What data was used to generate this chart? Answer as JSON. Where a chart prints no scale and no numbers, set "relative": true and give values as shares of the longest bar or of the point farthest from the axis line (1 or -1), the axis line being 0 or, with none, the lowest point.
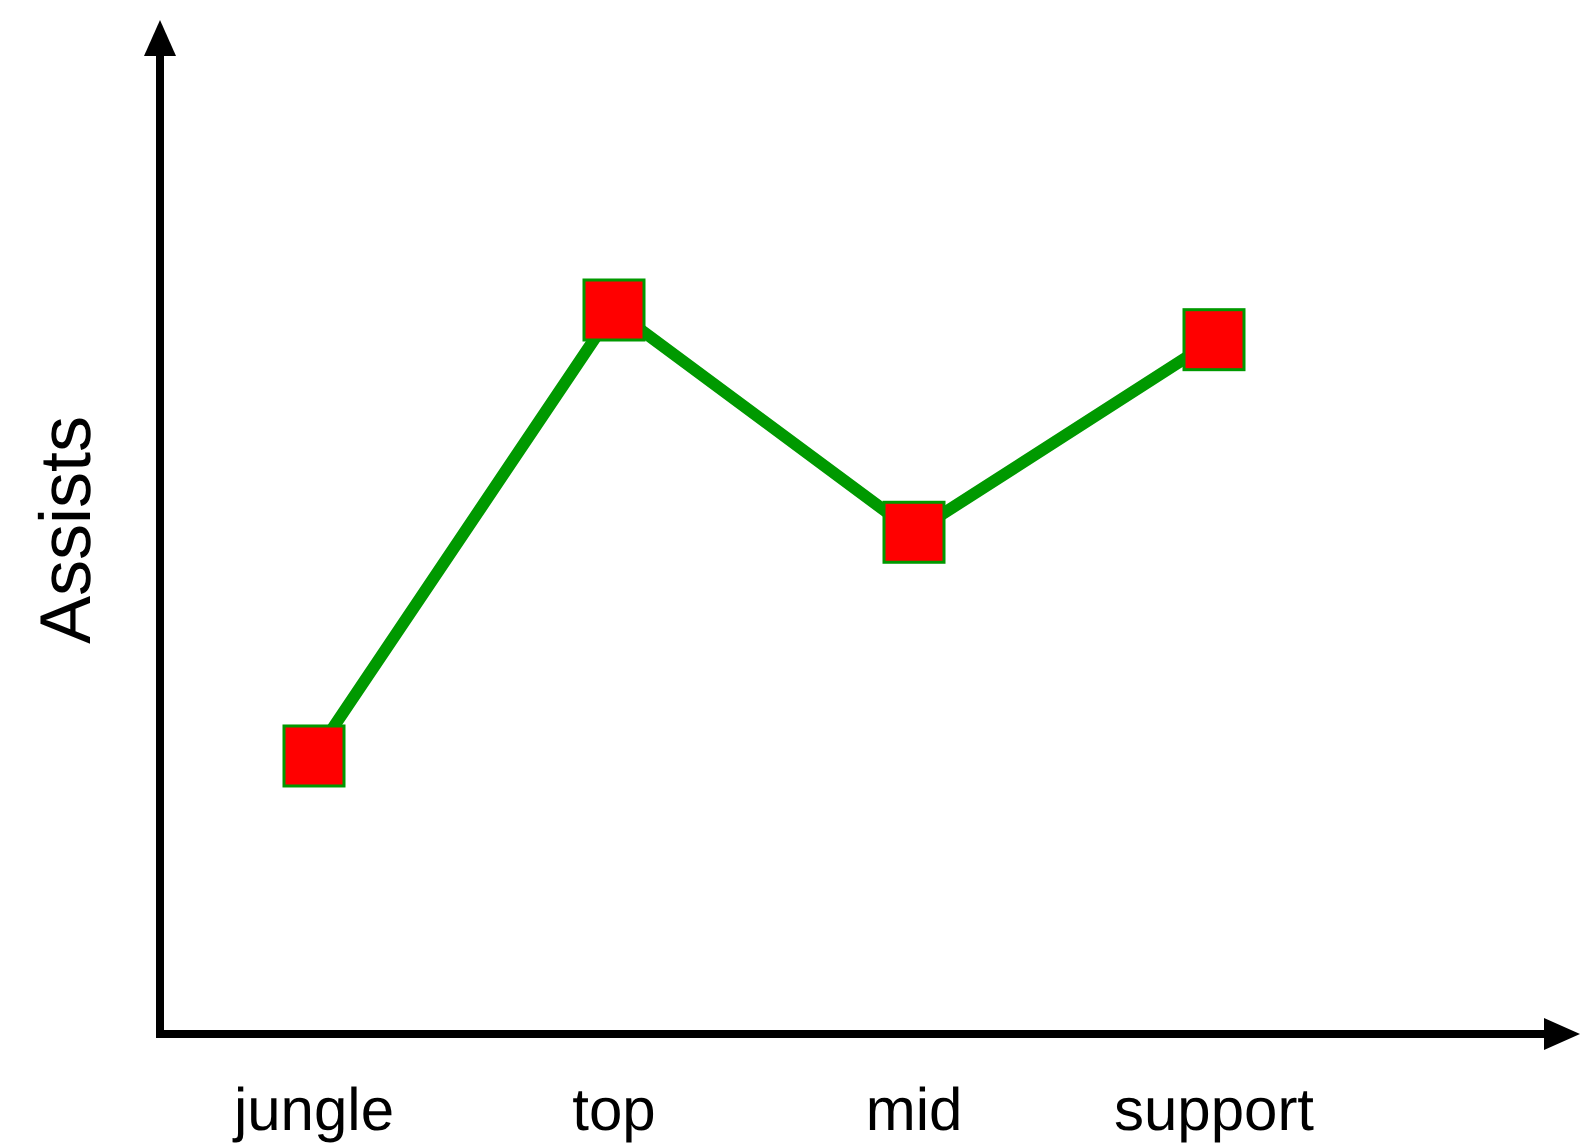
{
  "chart_data": {
    "type": "line",
    "ylabel": "Assists",
    "categories": [
      "jungle",
      "top",
      "mid",
      "support"
    ],
    "relative": true,
    "marker": "square",
    "line_style": "solid",
    "series": [
      {
        "color": "#009900",
        "colors": [
          "#ff0000",
          "#ff0000",
          "#ff0000",
          "#ff0000"
        ],
        "values": [
          0.384,
          1,
          0.693,
          0.959
        ]
      }
    ]
  }
}
